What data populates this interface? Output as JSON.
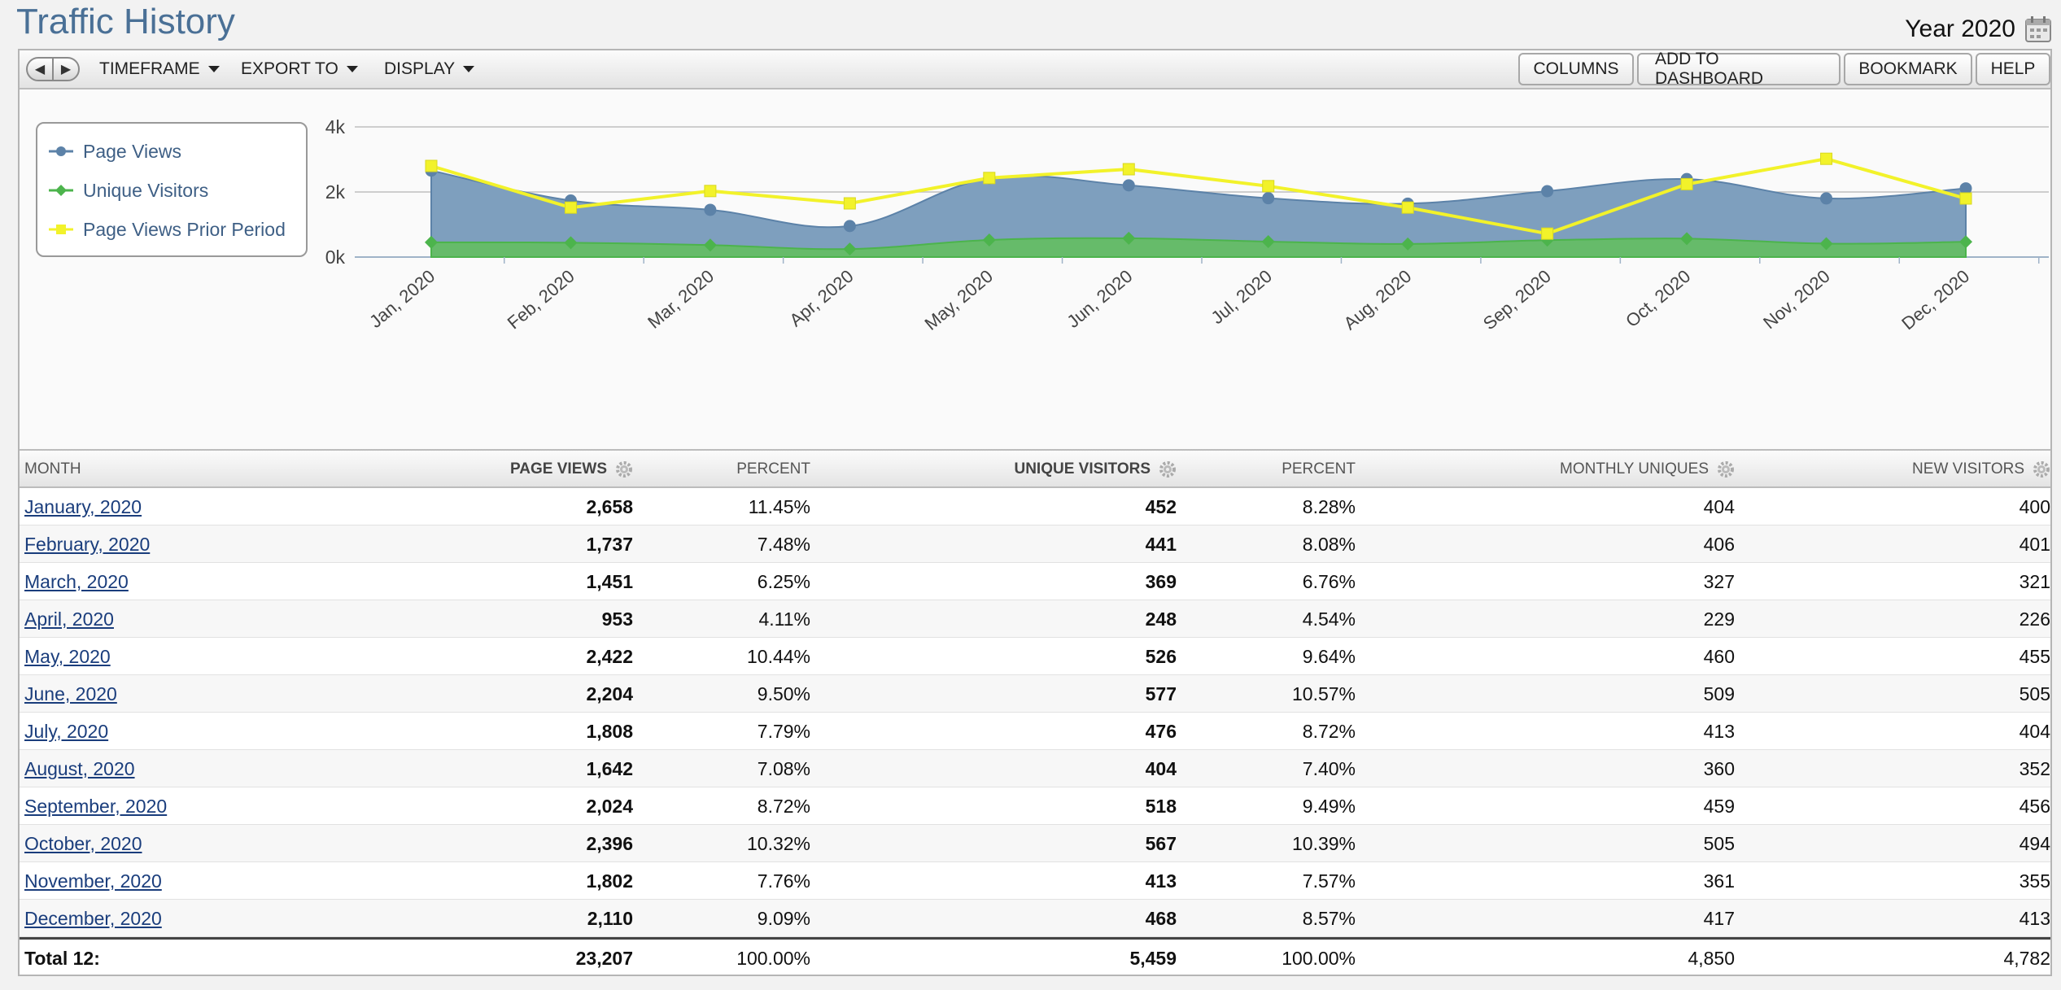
{
  "header": {
    "title": "Traffic History",
    "period": "Year 2020"
  },
  "toolbar": {
    "prev_icon": "left-arrow-icon",
    "next_icon": "right-arrow-icon",
    "menus": [
      "TIMEFRAME",
      "EXPORT TO",
      "DISPLAY"
    ],
    "buttons": [
      "COLUMNS",
      "ADD TO DASHBOARD",
      "BOOKMARK",
      "HELP"
    ]
  },
  "legend": [
    {
      "name": "Page Views",
      "color": "#5c82a8",
      "marker": "circle"
    },
    {
      "name": "Unique Visitors",
      "color": "#4cb44c",
      "marker": "diamond"
    },
    {
      "name": "Page Views Prior Period",
      "color": "#f2f22a",
      "marker": "square"
    }
  ],
  "chart_data": {
    "type": "area",
    "categories": [
      "Jan, 2020",
      "Feb, 2020",
      "Mar, 2020",
      "Apr, 2020",
      "May, 2020",
      "Jun, 2020",
      "Jul, 2020",
      "Aug, 2020",
      "Sep, 2020",
      "Oct, 2020",
      "Nov, 2020",
      "Dec, 2020"
    ],
    "y_ticks": [
      "0k",
      "2k",
      "4k"
    ],
    "ylim": [
      0,
      4000
    ],
    "grid": true,
    "legend_position": "top-left",
    "series": [
      {
        "name": "Page Views",
        "type": "area",
        "color": "#5c82a8",
        "values": [
          2658,
          1737,
          1451,
          953,
          2422,
          2204,
          1808,
          1642,
          2024,
          2396,
          1802,
          2110
        ]
      },
      {
        "name": "Unique Visitors",
        "type": "area",
        "color": "#4cb44c",
        "values": [
          452,
          441,
          369,
          248,
          526,
          577,
          476,
          404,
          518,
          567,
          413,
          468
        ]
      },
      {
        "name": "Page Views Prior Period",
        "type": "line",
        "color": "#f2f22a",
        "values": [
          2800,
          1520,
          2030,
          1650,
          2430,
          2700,
          2180,
          1520,
          720,
          2240,
          3020,
          1800
        ]
      }
    ]
  },
  "table": {
    "columns": [
      {
        "label": "MONTH",
        "gear": false
      },
      {
        "label": "PAGE VIEWS",
        "gear": true
      },
      {
        "label": "PERCENT",
        "gear": false
      },
      {
        "label": "UNIQUE VISITORS",
        "gear": true
      },
      {
        "label": "PERCENT",
        "gear": false
      },
      {
        "label": "MONTHLY UNIQUES",
        "gear": true
      },
      {
        "label": "NEW VISITORS",
        "gear": true
      }
    ],
    "rows": [
      [
        "January, 2020",
        "2,658",
        "11.45%",
        "452",
        "8.28%",
        "404",
        "400"
      ],
      [
        "February, 2020",
        "1,737",
        "7.48%",
        "441",
        "8.08%",
        "406",
        "401"
      ],
      [
        "March, 2020",
        "1,451",
        "6.25%",
        "369",
        "6.76%",
        "327",
        "321"
      ],
      [
        "April, 2020",
        "953",
        "4.11%",
        "248",
        "4.54%",
        "229",
        "226"
      ],
      [
        "May, 2020",
        "2,422",
        "10.44%",
        "526",
        "9.64%",
        "460",
        "455"
      ],
      [
        "June, 2020",
        "2,204",
        "9.50%",
        "577",
        "10.57%",
        "509",
        "505"
      ],
      [
        "July, 2020",
        "1,808",
        "7.79%",
        "476",
        "8.72%",
        "413",
        "404"
      ],
      [
        "August, 2020",
        "1,642",
        "7.08%",
        "404",
        "7.40%",
        "360",
        "352"
      ],
      [
        "September, 2020",
        "2,024",
        "8.72%",
        "518",
        "9.49%",
        "459",
        "456"
      ],
      [
        "October, 2020",
        "2,396",
        "10.32%",
        "567",
        "10.39%",
        "505",
        "494"
      ],
      [
        "November, 2020",
        "1,802",
        "7.76%",
        "413",
        "7.57%",
        "361",
        "355"
      ],
      [
        "December, 2020",
        "2,110",
        "9.09%",
        "468",
        "8.57%",
        "417",
        "413"
      ]
    ],
    "total": [
      "Total 12:",
      "23,207",
      "100.00%",
      "5,459",
      "100.00%",
      "4,850",
      "4,782"
    ]
  }
}
